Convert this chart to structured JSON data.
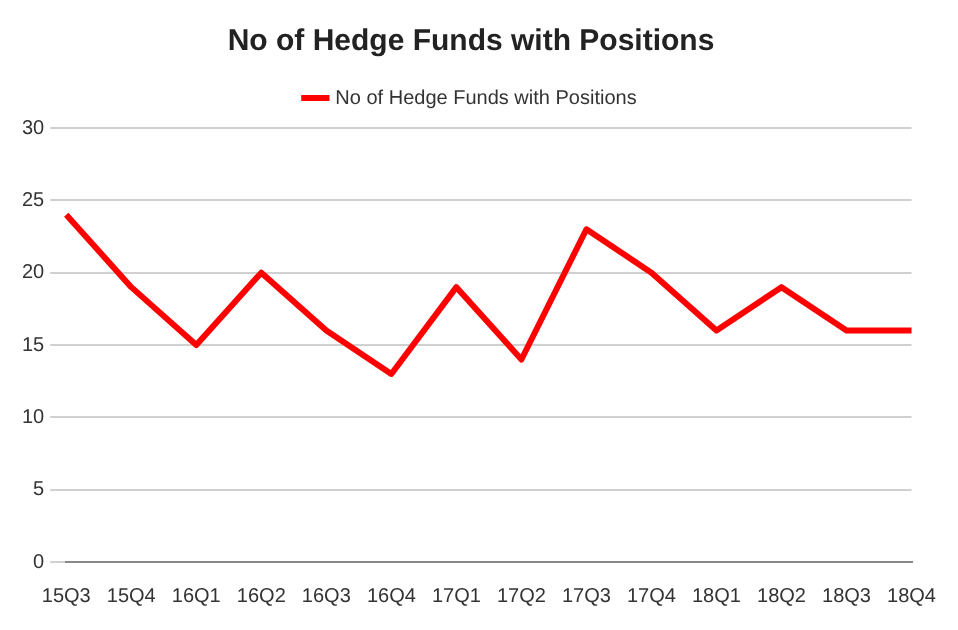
{
  "chart_data": {
    "type": "line",
    "title": "No of Hedge Funds with Positions",
    "categories": [
      "15Q3",
      "15Q4",
      "16Q1",
      "16Q2",
      "16Q3",
      "16Q4",
      "17Q1",
      "17Q2",
      "17Q3",
      "17Q4",
      "18Q1",
      "18Q2",
      "18Q3",
      "18Q4"
    ],
    "series": [
      {
        "name": "No of Hedge Funds with Positions",
        "color": "#ff0000",
        "values": [
          24,
          19,
          15,
          20,
          16,
          13,
          19,
          14,
          23,
          20,
          16,
          19,
          16,
          16
        ]
      }
    ],
    "ylim": [
      0,
      30
    ],
    "yticks": [
      0,
      5,
      10,
      15,
      20,
      25,
      30
    ],
    "grid": "y",
    "legend": "top",
    "marker": "none"
  }
}
